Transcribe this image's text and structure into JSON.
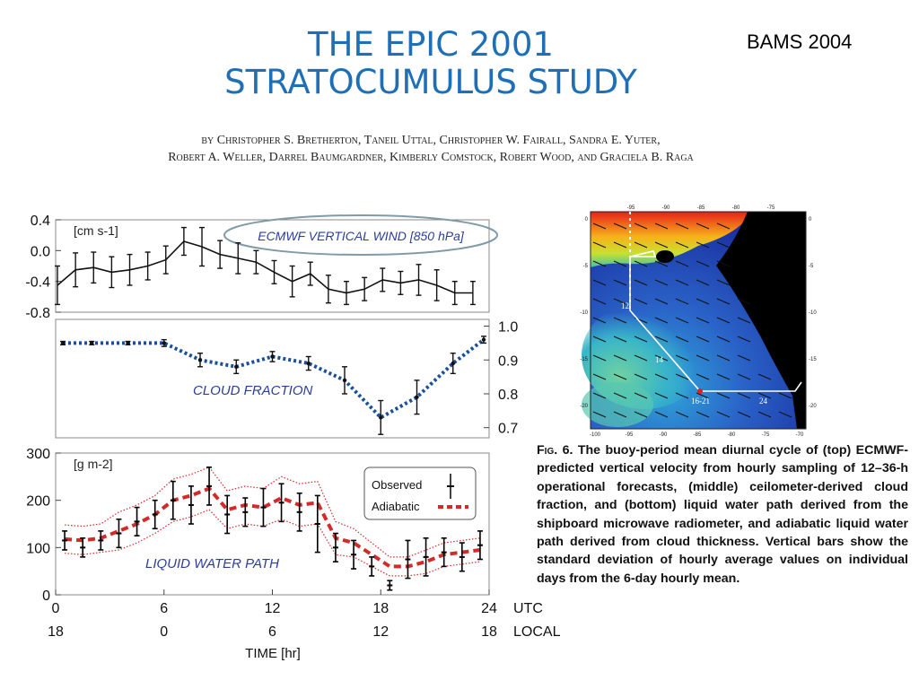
{
  "header": {
    "title_line1": "THE EPIC 2001",
    "title_line2": "STRATOCUMULUS STUDY",
    "tag": "BAMS 2004",
    "authors_line1": "by Christopher S. Bretherton, Taneil Uttal, Christopher W. Fairall, Sandra E. Yuter,",
    "authors_line2": "Robert A. Weller, Darrel Baumgardner, Kimberly Comstock, Robert Wood, and Graciela B. Raga"
  },
  "colors": {
    "title_blue": "#1f6fb6",
    "panel_label_blue": "#2b3f9a",
    "cloud_blue": "#1a4f9c",
    "adiabatic_red": "#d42a2a",
    "observed_black": "#000000"
  },
  "chart_data": [
    {
      "type": "line",
      "panel": "top",
      "label": "ECMWF VERTICAL WIND [850 hPa]",
      "unit": "[cm s-1]",
      "ylim": [
        -0.8,
        0.4
      ],
      "yticks": [
        "0.4",
        "0.0",
        "-0.4",
        "-0.8"
      ],
      "x": [
        0,
        1,
        2,
        3,
        4,
        5,
        6,
        7,
        8,
        9,
        10,
        11,
        12,
        13,
        14,
        15,
        16,
        17,
        18,
        19,
        20,
        21,
        22,
        23
      ],
      "series": [
        {
          "values": [
            -0.45,
            -0.25,
            -0.22,
            -0.28,
            -0.25,
            -0.2,
            -0.12,
            0.12,
            0.05,
            -0.05,
            -0.1,
            -0.15,
            -0.28,
            -0.4,
            -0.3,
            -0.5,
            -0.55,
            -0.5,
            -0.38,
            -0.42,
            -0.38,
            -0.45,
            -0.55,
            -0.55
          ],
          "errors": [
            0.25,
            0.22,
            0.2,
            0.2,
            0.2,
            0.18,
            0.18,
            0.18,
            0.25,
            0.18,
            0.2,
            0.15,
            0.15,
            0.2,
            0.15,
            0.18,
            0.15,
            0.15,
            0.15,
            0.15,
            0.2,
            0.2,
            0.15,
            0.15
          ]
        }
      ]
    },
    {
      "type": "line",
      "panel": "middle",
      "label": "CLOUD FRACTION",
      "ylim": [
        0.67,
        1.02
      ],
      "yticks": [
        "1.0",
        "0.9",
        "0.8",
        "0.7"
      ],
      "x": [
        0,
        2,
        4,
        6,
        8,
        10,
        12,
        14,
        16,
        18,
        20,
        22,
        24
      ],
      "series": [
        {
          "values": [
            0.95,
            0.95,
            0.95,
            0.95,
            0.9,
            0.88,
            0.91,
            0.89,
            0.84,
            0.73,
            0.79,
            0.89,
            0.96
          ],
          "errors": [
            0.005,
            0.005,
            0.005,
            0.01,
            0.02,
            0.02,
            0.015,
            0.02,
            0.04,
            0.05,
            0.05,
            0.03,
            0.01
          ]
        }
      ]
    },
    {
      "type": "line",
      "panel": "bottom",
      "label": "LIQUID WATER PATH",
      "unit": "[g m-2]",
      "ylim": [
        0,
        300
      ],
      "yticks": [
        "300",
        "200",
        "100",
        "0"
      ],
      "legend": [
        "Observed",
        "Adiabatic"
      ],
      "legend_position": "top-right",
      "x": [
        0.5,
        1.5,
        2.5,
        3.5,
        4.5,
        5.5,
        6.5,
        7.5,
        8.5,
        9.5,
        10.5,
        11.5,
        12.5,
        13.5,
        14.5,
        15.5,
        16.5,
        17.5,
        18.5,
        19.5,
        20.5,
        21.5,
        22.5,
        23.5
      ],
      "series": [
        {
          "name": "Observed",
          "values": [
            115,
            100,
            115,
            130,
            155,
            170,
            200,
            190,
            230,
            170,
            175,
            185,
            195,
            175,
            150,
            100,
            85,
            60,
            20,
            75,
            80,
            90,
            80,
            105
          ],
          "errors": [
            20,
            20,
            20,
            30,
            30,
            30,
            40,
            40,
            40,
            40,
            30,
            40,
            40,
            40,
            60,
            30,
            30,
            20,
            10,
            40,
            40,
            30,
            30,
            30
          ]
        },
        {
          "name": "Adiabatic",
          "values": [
            118,
            115,
            120,
            135,
            150,
            170,
            200,
            210,
            225,
            180,
            190,
            185,
            205,
            190,
            195,
            120,
            110,
            85,
            60,
            60,
            70,
            85,
            90,
            95
          ],
          "spread": [
            30,
            30,
            30,
            40,
            40,
            40,
            45,
            45,
            45,
            40,
            40,
            40,
            45,
            45,
            45,
            35,
            30,
            25,
            20,
            20,
            25,
            25,
            25,
            25
          ]
        }
      ],
      "xticks_utc": [
        "0",
        "6",
        "12",
        "18",
        "24"
      ],
      "xticks_local": [
        "18",
        "0",
        "6",
        "12",
        "18"
      ],
      "xunit_utc": "UTC",
      "xunit_local": "LOCAL",
      "xlabel": "TIME [hr]"
    }
  ],
  "map": {
    "top_ticks": [
      "-95",
      "-90",
      "-85",
      "-80",
      "-75"
    ],
    "bottom_ticks": [
      "-100",
      "-95",
      "-90",
      "-85",
      "-80",
      "-75",
      "-70"
    ],
    "left_ticks": [
      "0",
      "-5",
      "-10",
      "-15",
      "-20"
    ],
    "right_ticks": [
      "0",
      "-5",
      "-10",
      "-15",
      "-20"
    ],
    "track_labels": [
      "12",
      "14",
      "16-21",
      "24"
    ]
  },
  "caption": {
    "fig_label": "Fig. 6.",
    "text": "The buoy-period mean diurnal cycle of (top) ECMWF-predicted vertical velocity from hourly sampling of 12–36-h operational forecasts, (middle) ceilometer-derived cloud fraction, and (bottom) liquid water path derived from the shipboard microwave radiometer, and adiabatic liquid water path derived from cloud thickness. Vertical bars show the standard deviation of hourly average values on individual days from the 6-day hourly mean."
  }
}
